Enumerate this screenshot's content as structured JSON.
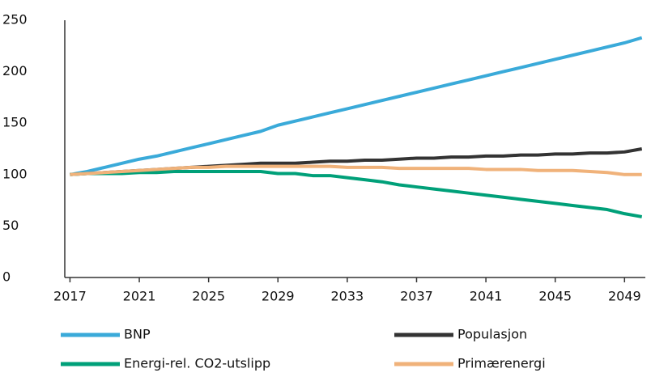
{
  "chart_data": {
    "type": "line",
    "x": [
      2017,
      2018,
      2019,
      2020,
      2021,
      2022,
      2023,
      2024,
      2025,
      2026,
      2027,
      2028,
      2029,
      2030,
      2031,
      2032,
      2033,
      2034,
      2035,
      2036,
      2037,
      2038,
      2039,
      2040,
      2041,
      2042,
      2043,
      2044,
      2045,
      2046,
      2047,
      2048,
      2049,
      2050
    ],
    "series": [
      {
        "name": "BNP",
        "color": "#3aaad9",
        "values": [
          100,
          103,
          107,
          111,
          115,
          118,
          122,
          126,
          130,
          134,
          138,
          142,
          148,
          152,
          156,
          160,
          164,
          168,
          172,
          176,
          180,
          184,
          188,
          192,
          196,
          200,
          204,
          208,
          212,
          216,
          220,
          224,
          228,
          233
        ]
      },
      {
        "name": "Populasjon",
        "color": "#333333",
        "values": [
          100,
          101,
          102,
          103,
          104,
          105,
          106,
          107,
          108,
          109,
          110,
          111,
          111,
          111,
          112,
          113,
          113,
          114,
          114,
          115,
          116,
          116,
          117,
          117,
          118,
          118,
          119,
          119,
          120,
          120,
          121,
          121,
          122,
          125
        ]
      },
      {
        "name": "Energi-rel. CO2-utslipp",
        "color": "#00a079",
        "values": [
          100,
          101,
          101,
          101,
          102,
          102,
          103,
          103,
          103,
          103,
          103,
          103,
          101,
          101,
          99,
          99,
          97,
          95,
          93,
          90,
          88,
          86,
          84,
          82,
          80,
          78,
          76,
          74,
          72,
          70,
          68,
          66,
          62,
          59
        ]
      },
      {
        "name": "Primærenergi",
        "color": "#f0b27a",
        "values": [
          100,
          101,
          102,
          103,
          104,
          105,
          106,
          107,
          107,
          108,
          108,
          108,
          108,
          108,
          108,
          108,
          107,
          107,
          107,
          106,
          106,
          106,
          106,
          106,
          105,
          105,
          105,
          104,
          104,
          104,
          103,
          102,
          100,
          100
        ]
      }
    ],
    "xlim": [
      2016.7,
      2050.2
    ],
    "xticks": [
      2017,
      2021,
      2025,
      2029,
      2033,
      2037,
      2041,
      2045,
      2049
    ],
    "ylim": [
      0,
      250
    ],
    "yticks": [
      0,
      50,
      100,
      150,
      200,
      250
    ],
    "grid": false
  }
}
